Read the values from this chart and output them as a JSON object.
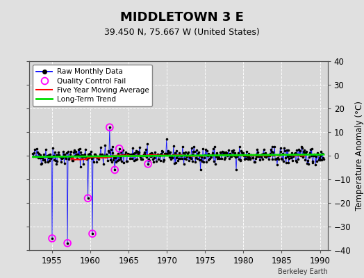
{
  "title": "MIDDLETOWN 3 E",
  "subtitle": "39.450 N, 75.667 W (United States)",
  "ylabel": "Temperature Anomaly (°C)",
  "credit": "Berkeley Earth",
  "xlim": [
    1952.0,
    1991.0
  ],
  "ylim": [
    -40,
    40
  ],
  "yticks": [
    -40,
    -30,
    -20,
    -10,
    0,
    10,
    20,
    30,
    40
  ],
  "xticks": [
    1955,
    1960,
    1965,
    1970,
    1975,
    1980,
    1985,
    1990
  ],
  "bg_color": "#e0e0e0",
  "plot_bg_color": "#d8d8d8",
  "grid_color": "white",
  "raw_color": "#0000ff",
  "ma_color": "#ff0000",
  "trend_color": "#00dd00",
  "qc_color": "#ff00ff",
  "seed": 42,
  "n_months": 456,
  "start_year": 1952.5
}
